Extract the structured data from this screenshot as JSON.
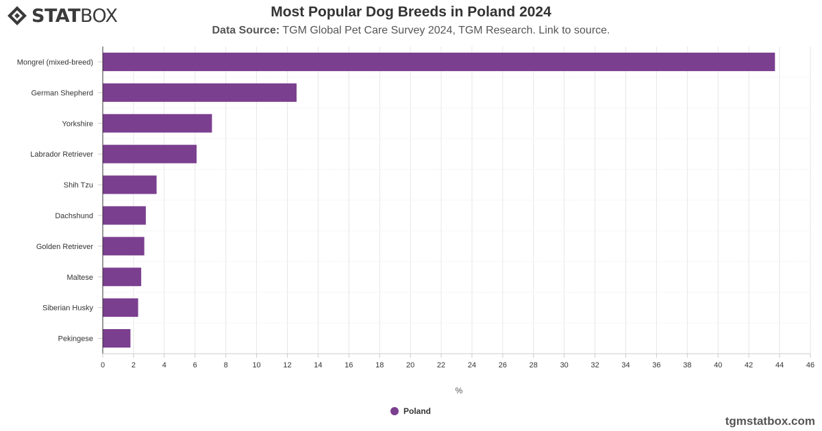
{
  "logo": {
    "part1": "STAT",
    "part2": "BOX",
    "icon": "statbox-diamond-logo-icon"
  },
  "header": {
    "title": "Most Popular Dog Breeds in Poland 2024",
    "source_label": "Data Source:",
    "source_text": "TGM Global Pet Care Survey 2024, TGM Research. Link to source."
  },
  "watermark": "tgmstatbox.com",
  "colors": {
    "bar": "#7b3f8f",
    "grid": "#e6e6e6",
    "axis": "#333333"
  },
  "chart_data": {
    "type": "bar",
    "orientation": "horizontal",
    "categories": [
      "Mongrel (mixed-breed)",
      "German Shepherd",
      "Yorkshire",
      "Labrador Retriever",
      "Shih Tzu",
      "Dachshund",
      "Golden Retriever",
      "Maltese",
      "Siberian Husky",
      "Pekingese"
    ],
    "series": [
      {
        "name": "Poland",
        "values": [
          43.7,
          12.6,
          7.1,
          6.1,
          3.5,
          2.8,
          2.7,
          2.5,
          2.3,
          1.8
        ]
      }
    ],
    "xlabel": "%",
    "xlim": [
      0,
      46
    ],
    "xticks": [
      0,
      2,
      4,
      6,
      8,
      10,
      12,
      14,
      16,
      18,
      20,
      22,
      24,
      26,
      28,
      30,
      32,
      34,
      36,
      38,
      40,
      42,
      44,
      46
    ],
    "grid": true,
    "legend": "bottom-center"
  }
}
